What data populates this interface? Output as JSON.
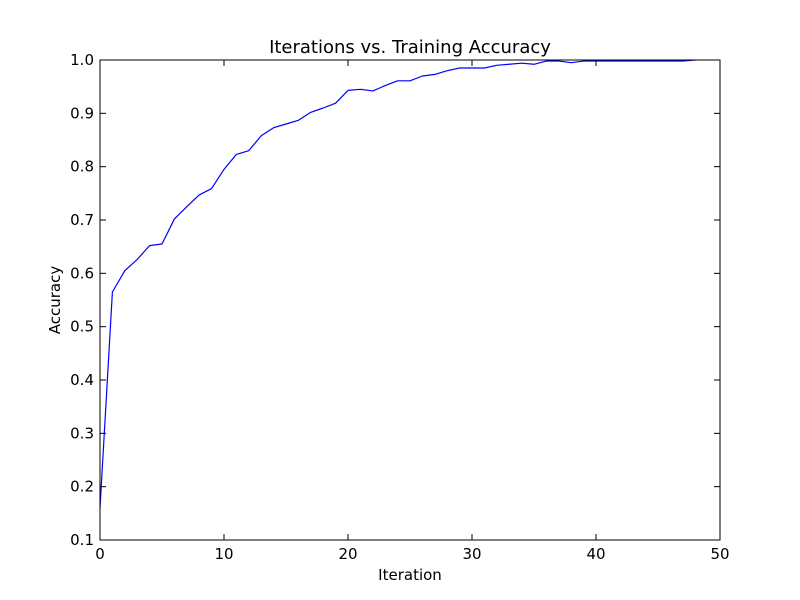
{
  "chart_data": {
    "type": "line",
    "title": "Iterations vs. Training Accuracy",
    "xlabel": "Iteration",
    "ylabel": "Accuracy",
    "xlim": [
      0,
      50
    ],
    "ylim": [
      0.1,
      1.0
    ],
    "xticks": [
      0,
      10,
      20,
      30,
      40,
      50
    ],
    "xtick_labels": [
      "0",
      "10",
      "20",
      "30",
      "40",
      "50"
    ],
    "yticks": [
      0.1,
      0.2,
      0.3,
      0.4,
      0.5,
      0.6,
      0.7,
      0.8,
      0.9,
      1.0
    ],
    "ytick_labels": [
      "0.1",
      "0.2",
      "0.3",
      "0.4",
      "0.5",
      "0.6",
      "0.7",
      "0.8",
      "0.9",
      "1.0"
    ],
    "grid": false,
    "legend": "none",
    "series": [
      {
        "color": "#0000ff",
        "x": [
          0,
          1,
          2,
          3,
          4,
          5,
          6,
          7,
          8,
          9,
          10,
          11,
          12,
          13,
          14,
          15,
          16,
          17,
          18,
          19,
          20,
          21,
          22,
          23,
          24,
          25,
          26,
          27,
          28,
          29,
          30,
          31,
          32,
          33,
          34,
          35,
          36,
          37,
          38,
          39,
          40,
          41,
          42,
          43,
          44,
          45,
          46,
          47,
          48
        ],
        "y": [
          0.16,
          0.565,
          0.605,
          0.626,
          0.652,
          0.655,
          0.702,
          0.725,
          0.747,
          0.759,
          0.795,
          0.823,
          0.83,
          0.858,
          0.873,
          0.88,
          0.887,
          0.902,
          0.91,
          0.919,
          0.943,
          0.945,
          0.942,
          0.952,
          0.961,
          0.961,
          0.97,
          0.973,
          0.98,
          0.985,
          0.985,
          0.985,
          0.99,
          0.992,
          0.994,
          0.992,
          0.998,
          0.998,
          0.995,
          0.998,
          0.998,
          0.998,
          0.998,
          0.998,
          0.998,
          0.998,
          0.998,
          0.998,
          1.0
        ]
      }
    ]
  }
}
